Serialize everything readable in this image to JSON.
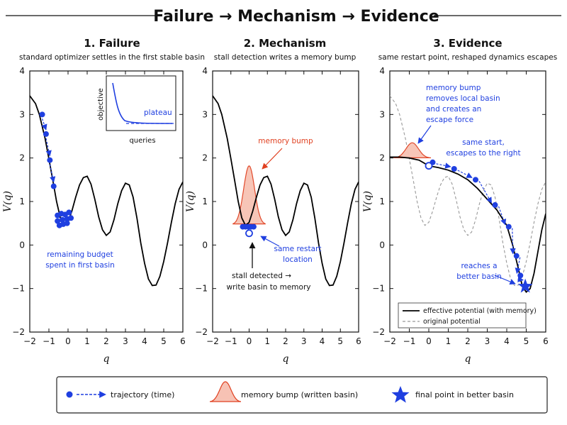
{
  "figure_title": "Failure → Mechanism → Evidence",
  "colors": {
    "potential": "#000000",
    "trajectory": "#1f3fe0",
    "memory_bump_fill": "#f7c2b4",
    "memory_bump_edge": "#e04020",
    "original_potential": "#999999"
  },
  "axes": {
    "xlabel": "q",
    "ylabel": "V(q)",
    "xlim": [
      -2,
      6
    ],
    "ylim": [
      -2,
      4
    ],
    "xticks": [
      "−2",
      "−1",
      "0",
      "1",
      "2",
      "3",
      "4",
      "5",
      "6"
    ],
    "yticks": [
      "−2",
      "−1",
      "0",
      "1",
      "2",
      "3",
      "4"
    ]
  },
  "panels": [
    {
      "title": "1. Failure",
      "subtitle": "standard optimizer settles in the first stable basin",
      "annotations": {
        "budget_line1": "remaining budget",
        "budget_line2": "spent in first basin"
      },
      "inset": {
        "ylabel": "objective",
        "xlabel": "queries",
        "label": "plateau"
      }
    },
    {
      "title": "2. Mechanism",
      "subtitle": "stall detection writes a memory bump",
      "annotations": {
        "bump_label": "memory bump",
        "restart_line1": "same restart",
        "restart_line2": "location",
        "stall_line1": "stall detected →",
        "stall_line2": "write basin to memory"
      }
    },
    {
      "title": "3. Evidence",
      "subtitle": "same restart point, reshaped dynamics escapes",
      "annotations": {
        "bump_line1": "memory bump",
        "bump_line2": "removes local basin",
        "bump_line3": "and creates an",
        "bump_line4": "escape force",
        "start_line1": "same start,",
        "start_line2": "escapes to the right",
        "better_line1": "reaches a",
        "better_line2": "better basin"
      },
      "legend": [
        {
          "label": "effective potential (with memory)"
        },
        {
          "label": "original potential"
        }
      ]
    }
  ],
  "legend": [
    {
      "label": "trajectory (time)",
      "icon": "trajectory-dot-arrow-icon"
    },
    {
      "label": "memory bump (written basin)",
      "icon": "memory-bump-icon"
    },
    {
      "label": "final point in better basin",
      "icon": "star-icon"
    }
  ],
  "chart_data": [
    {
      "type": "line",
      "title": "1. Failure",
      "xlabel": "q",
      "ylabel": "V(q)",
      "xlim": [
        -2,
        6
      ],
      "ylim": [
        -2,
        4
      ],
      "series": [
        {
          "name": "",
          "x": [
            -2.0,
            -1.7,
            -1.5,
            -1.2,
            -1.0,
            -0.8,
            -0.6,
            -0.4,
            -0.2,
            0.0,
            0.2,
            0.4,
            0.6,
            0.8,
            1.0,
            1.2,
            1.4,
            1.6,
            1.8,
            2.0,
            2.2,
            2.4,
            2.6,
            2.8,
            3.0,
            3.2,
            3.4,
            3.6,
            3.8,
            4.0,
            4.2,
            4.4,
            4.6,
            4.8,
            5.0,
            5.2,
            5.4,
            5.6,
            5.8,
            6.0
          ],
          "y": [
            3.43,
            3.25,
            3.0,
            2.45,
            1.98,
            1.5,
            1.0,
            0.62,
            0.45,
            0.52,
            0.78,
            1.1,
            1.38,
            1.55,
            1.58,
            1.4,
            1.05,
            0.65,
            0.35,
            0.22,
            0.3,
            0.58,
            0.95,
            1.25,
            1.42,
            1.38,
            1.1,
            0.62,
            0.05,
            -0.42,
            -0.78,
            -0.93,
            -0.92,
            -0.72,
            -0.38,
            0.05,
            0.52,
            0.95,
            1.28,
            1.45
          ]
        }
      ],
      "trajectory": {
        "x": [
          -1.35,
          -1.15,
          -0.95,
          -0.75
        ],
        "y": [
          3.0,
          2.55,
          1.95,
          1.35
        ]
      },
      "cluster": {
        "x": [
          -0.55,
          -0.35,
          -0.15,
          0.05,
          -0.55,
          -0.3,
          -0.05,
          0.15,
          -0.45,
          -0.25,
          -0.05
        ],
        "y": [
          0.68,
          0.72,
          0.7,
          0.75,
          0.55,
          0.58,
          0.6,
          0.62,
          0.45,
          0.48,
          0.5
        ]
      },
      "inset": {
        "xlabel": "queries",
        "ylabel": "objective",
        "label": "plateau"
      }
    },
    {
      "type": "line",
      "title": "2. Mechanism",
      "xlabel": "q",
      "ylabel": "V(q)",
      "xlim": [
        -2,
        6
      ],
      "ylim": [
        -2,
        4
      ],
      "series": [
        {
          "name": "",
          "x": [
            -2.0,
            -1.7,
            -1.5,
            -1.2,
            -1.0,
            -0.8,
            -0.6,
            -0.4,
            -0.2,
            0.0,
            0.2,
            0.4,
            0.6,
            0.8,
            1.0,
            1.2,
            1.4,
            1.6,
            1.8,
            2.0,
            2.2,
            2.4,
            2.6,
            2.8,
            3.0,
            3.2,
            3.4,
            3.6,
            3.8,
            4.0,
            4.2,
            4.4,
            4.6,
            4.8,
            5.0,
            5.2,
            5.4,
            5.6,
            5.8,
            6.0
          ],
          "y": [
            3.43,
            3.25,
            3.0,
            2.45,
            1.98,
            1.5,
            1.0,
            0.62,
            0.45,
            0.52,
            0.78,
            1.1,
            1.38,
            1.55,
            1.58,
            1.4,
            1.05,
            0.65,
            0.35,
            0.22,
            0.3,
            0.58,
            0.95,
            1.25,
            1.42,
            1.38,
            1.1,
            0.62,
            0.05,
            -0.42,
            -0.78,
            -0.93,
            -0.92,
            -0.72,
            -0.38,
            0.05,
            0.52,
            0.95,
            1.28,
            1.45
          ]
        }
      ],
      "memory_bump": {
        "center": 0.0,
        "height": 1.35,
        "width": 0.3,
        "base": 0.47
      },
      "points": {
        "x": [
          -0.35,
          -0.2,
          -0.05,
          0.1,
          0.25
        ],
        "y": [
          0.42,
          0.42,
          0.42,
          0.42,
          0.42
        ]
      },
      "restart_point": {
        "x": 0.0,
        "y": 0.27
      }
    },
    {
      "type": "line",
      "title": "3. Evidence",
      "xlabel": "q",
      "ylabel": "V(q)",
      "xlim": [
        -2,
        6
      ],
      "ylim": [
        -2,
        4
      ],
      "series": [
        {
          "name": "effective potential (with memory)",
          "x": [
            -2.0,
            -1.5,
            -1.0,
            -0.5,
            0.0,
            0.5,
            1.0,
            1.5,
            2.0,
            2.5,
            3.0,
            3.5,
            4.0,
            4.3,
            4.6,
            4.8,
            5.0,
            5.2,
            5.4,
            5.6,
            5.8,
            6.0
          ],
          "y": [
            2.02,
            2.02,
            2.0,
            1.95,
            1.82,
            1.78,
            1.72,
            1.63,
            1.5,
            1.3,
            1.05,
            0.8,
            0.45,
            0.0,
            -0.55,
            -0.95,
            -1.08,
            -1.0,
            -0.65,
            -0.15,
            0.35,
            0.72
          ]
        },
        {
          "name": "original potential",
          "x": [
            -2.0,
            -1.7,
            -1.5,
            -1.2,
            -1.0,
            -0.8,
            -0.6,
            -0.4,
            -0.2,
            0.0,
            0.2,
            0.4,
            0.6,
            0.8,
            1.0,
            1.2,
            1.4,
            1.6,
            1.8,
            2.0,
            2.2,
            2.4,
            2.6,
            2.8,
            3.0,
            3.2,
            3.4,
            3.6,
            3.8,
            4.0,
            4.2,
            4.4,
            4.6,
            4.8,
            5.0,
            5.2,
            5.4,
            5.6,
            5.8,
            6.0
          ],
          "y": [
            3.43,
            3.25,
            3.0,
            2.45,
            1.98,
            1.5,
            1.0,
            0.62,
            0.45,
            0.52,
            0.78,
            1.1,
            1.38,
            1.55,
            1.58,
            1.4,
            1.05,
            0.65,
            0.35,
            0.22,
            0.3,
            0.58,
            0.95,
            1.25,
            1.42,
            1.38,
            1.1,
            0.62,
            0.05,
            -0.42,
            -0.78,
            -0.93,
            -0.92,
            -0.72,
            -0.38,
            0.05,
            0.52,
            0.95,
            1.28,
            1.45
          ]
        }
      ],
      "memory_bump": {
        "center": -0.85,
        "height": 0.35,
        "width": 0.32,
        "base": 2.0
      },
      "restart_point": {
        "x": 0.0,
        "y": 1.82
      },
      "trajectory": {
        "x": [
          0.0,
          0.2,
          1.3,
          2.4,
          3.4,
          4.1,
          4.5,
          4.7
        ],
        "y": [
          1.82,
          1.9,
          1.75,
          1.5,
          0.92,
          0.42,
          -0.25,
          -0.7
        ]
      },
      "final_point": {
        "x": 4.95,
        "y": -0.95
      }
    }
  ]
}
